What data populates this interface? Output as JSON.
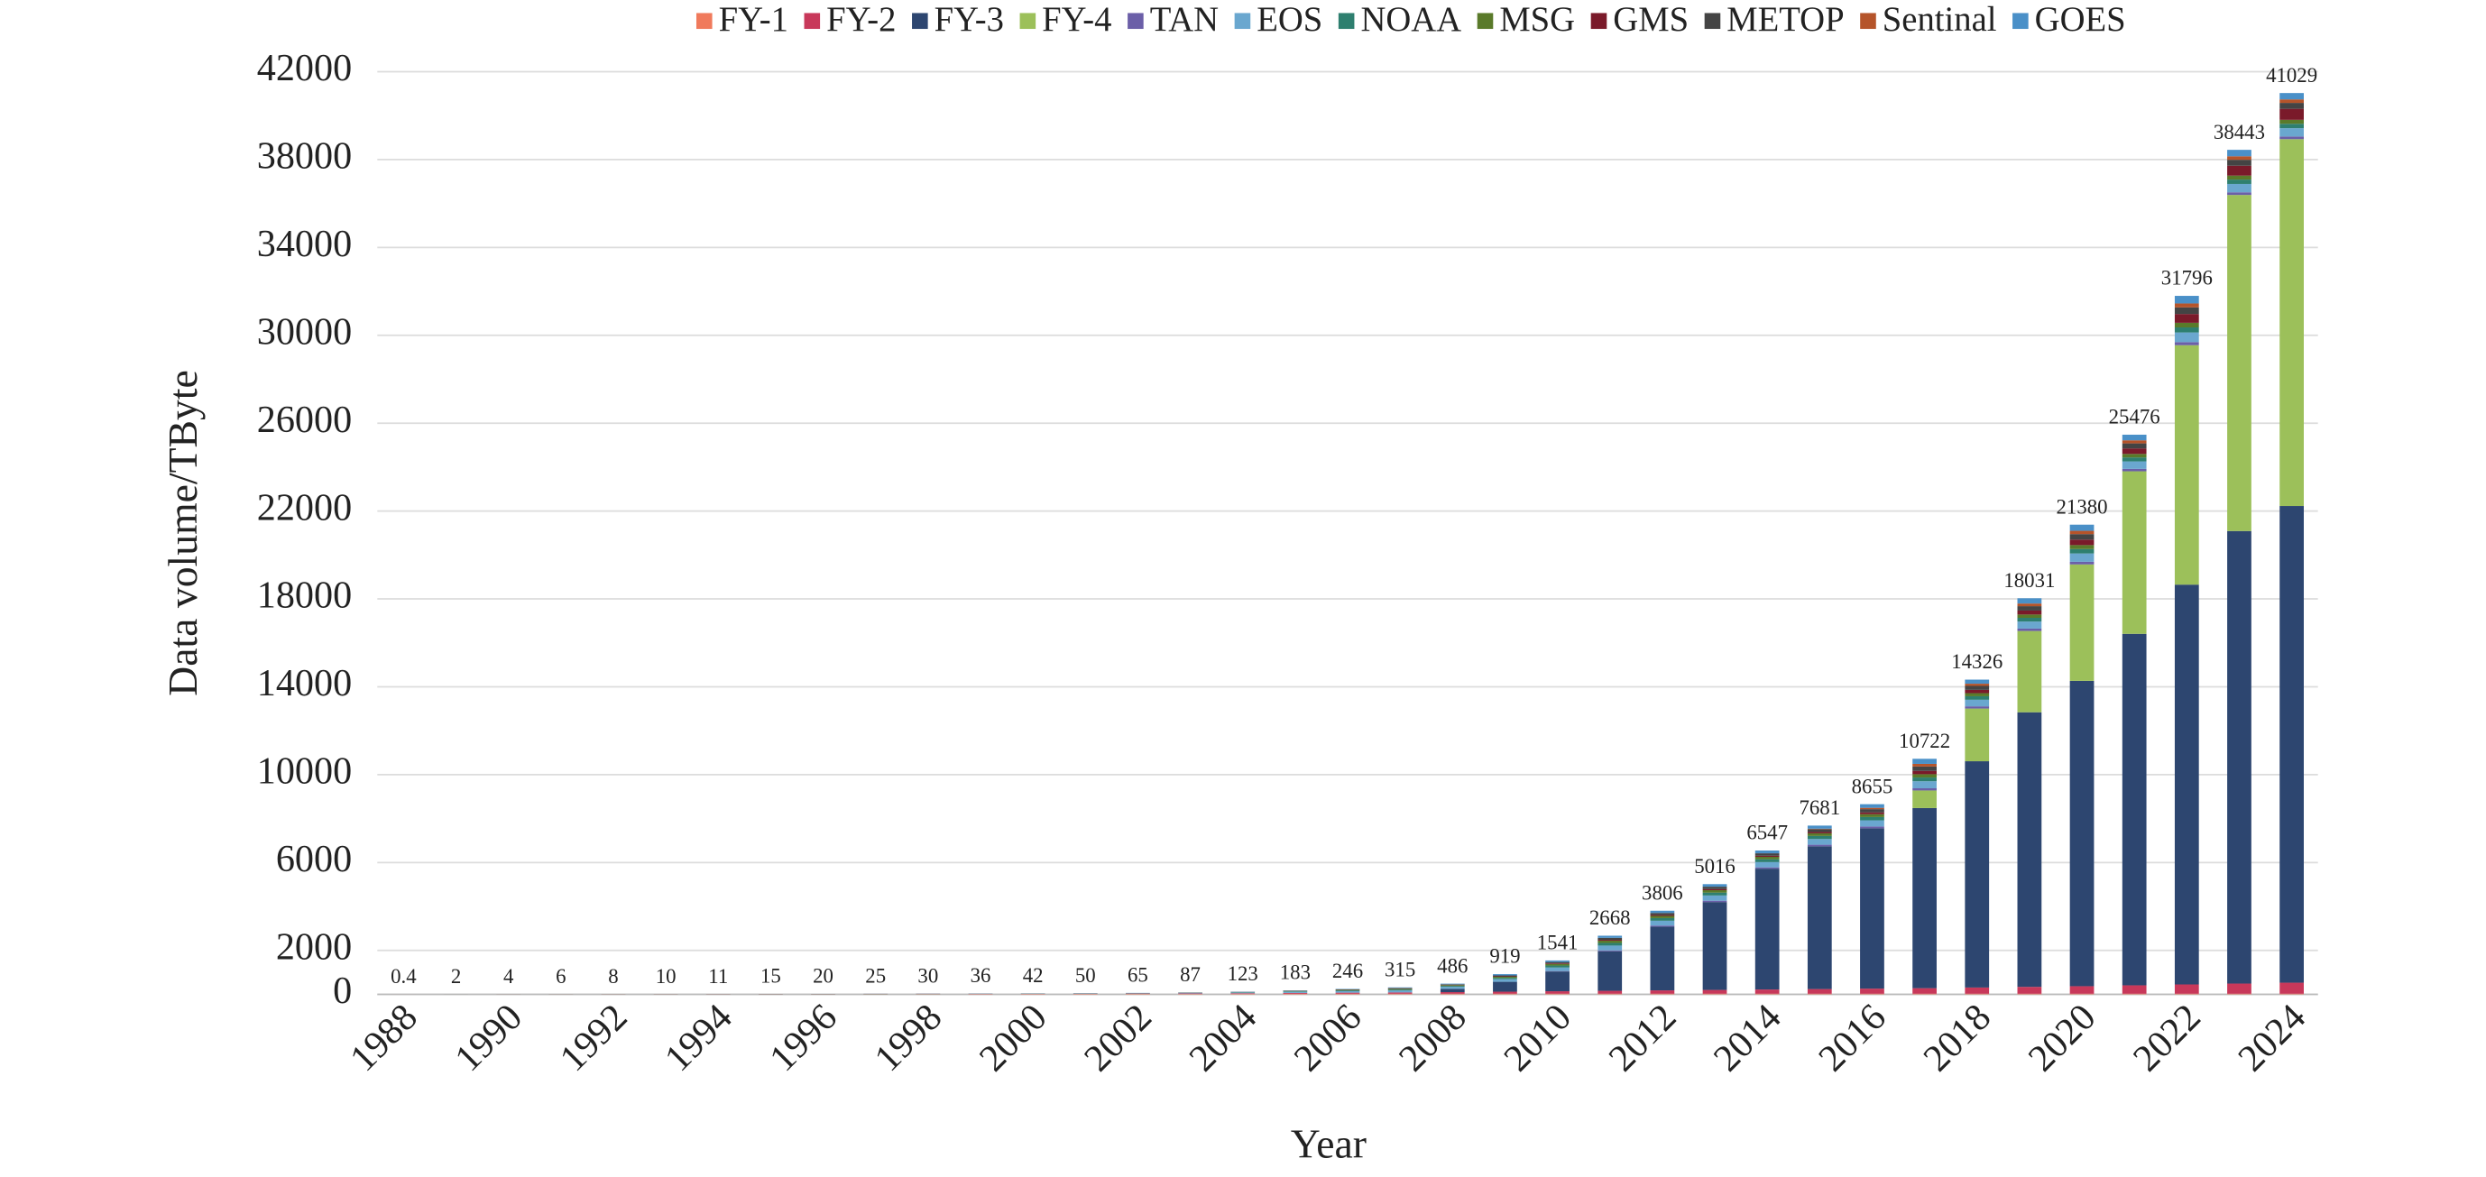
{
  "chart_data": {
    "type": "stacked_bar",
    "y_label": "Data volume/TByte",
    "x_label": "Year",
    "categories": [
      "1988",
      null,
      "1990",
      null,
      "1992",
      null,
      "1994",
      null,
      "1996",
      null,
      "1998",
      null,
      "2000",
      null,
      "2002",
      null,
      "2004",
      null,
      "2006",
      null,
      "2008",
      null,
      "2010",
      null,
      "2012",
      null,
      "2014",
      null,
      "2016",
      null,
      "2018",
      null,
      "2020",
      null,
      "2022",
      null,
      "2024"
    ],
    "totals": [
      0.4,
      2,
      4,
      6,
      8,
      10,
      11,
      15,
      20,
      25,
      30,
      36,
      42,
      50,
      65,
      87,
      123,
      183,
      246,
      315,
      486,
      919,
      1541,
      2668,
      3806,
      5016,
      6547,
      7681,
      8655,
      10722,
      14326,
      18031,
      21380,
      25476,
      31796,
      38443,
      41029
    ],
    "series": [
      {
        "name": "FY-1",
        "color": "#f07a5c",
        "values": [
          0.4,
          1,
          2,
          3,
          4,
          5,
          5,
          6,
          8,
          10,
          12,
          14,
          16,
          18,
          20,
          22,
          25,
          28,
          30,
          30,
          30,
          30,
          30,
          30,
          30,
          30,
          30,
          30,
          30,
          30,
          30,
          30,
          30,
          30,
          30,
          30,
          30
        ]
      },
      {
        "name": "FY-2",
        "color": "#c8385a",
        "values": [
          0,
          0,
          0,
          0,
          0,
          0,
          0,
          0,
          0,
          1,
          2,
          4,
          6,
          8,
          12,
          18,
          25,
          35,
          45,
          55,
          70,
          90,
          110,
          130,
          150,
          170,
          190,
          210,
          230,
          250,
          280,
          310,
          340,
          380,
          420,
          460,
          500
        ]
      },
      {
        "name": "FY-3",
        "color": "#2d4670",
        "values": [
          0,
          0,
          0,
          0,
          0,
          0,
          0,
          0,
          0,
          0,
          0,
          0,
          0,
          0,
          0,
          0,
          0,
          0,
          0,
          0,
          150,
          450,
          900,
          1800,
          2900,
          4000,
          5500,
          6500,
          7300,
          8200,
          10300,
          12500,
          13900,
          16000,
          18200,
          20600,
          21700
        ]
      },
      {
        "name": "FY-4",
        "color": "#9cc05a",
        "values": [
          0,
          0,
          0,
          0,
          0,
          0,
          0,
          0,
          0,
          0,
          0,
          0,
          0,
          0,
          0,
          0,
          0,
          0,
          0,
          0,
          0,
          0,
          0,
          0,
          0,
          0,
          0,
          0,
          0,
          800,
          2400,
          3700,
          5300,
          7400,
          10900,
          15300,
          16700
        ]
      },
      {
        "name": "TAN",
        "color": "#6b5fa8",
        "values": [
          0,
          0,
          0,
          0,
          0,
          0,
          0,
          0,
          0,
          0,
          0,
          0,
          0,
          0,
          0,
          0,
          0,
          0,
          0,
          0,
          0,
          0,
          20,
          40,
          50,
          60,
          60,
          70,
          80,
          100,
          100,
          110,
          120,
          110,
          140,
          120,
          120
        ]
      },
      {
        "name": "EOS",
        "color": "#6aa7cf",
        "values": [
          0,
          0,
          0,
          0,
          0,
          0,
          0,
          0,
          0,
          0,
          0,
          0,
          2,
          5,
          10,
          18,
          30,
          50,
          70,
          90,
          90,
          120,
          160,
          220,
          220,
          240,
          240,
          260,
          280,
          320,
          300,
          320,
          380,
          340,
          440,
          380,
          380
        ]
      },
      {
        "name": "NOAA",
        "color": "#2e7f6f",
        "values": [
          0,
          1,
          1,
          2,
          2,
          3,
          3,
          5,
          6,
          7,
          8,
          8,
          9,
          9,
          10,
          12,
          15,
          25,
          35,
          45,
          45,
          60,
          90,
          120,
          120,
          130,
          130,
          140,
          150,
          170,
          160,
          170,
          200,
          180,
          230,
          200,
          200
        ]
      },
      {
        "name": "MSG",
        "color": "#5a7a2a",
        "values": [
          0,
          0,
          0,
          0,
          0,
          0,
          0,
          0,
          0,
          0,
          0,
          0,
          0,
          0,
          2,
          5,
          10,
          18,
          25,
          35,
          35,
          50,
          70,
          100,
          100,
          110,
          110,
          120,
          130,
          150,
          140,
          150,
          180,
          160,
          210,
          180,
          180
        ]
      },
      {
        "name": "GMS",
        "color": "#7a1a2a",
        "values": [
          0,
          0,
          1,
          1,
          2,
          2,
          3,
          4,
          4,
          4,
          5,
          5,
          4,
          4,
          5,
          5,
          8,
          12,
          15,
          15,
          15,
          20,
          30,
          40,
          45,
          50,
          50,
          60,
          80,
          150,
          150,
          180,
          250,
          250,
          400,
          450,
          500
        ]
      },
      {
        "name": "METOP",
        "color": "#444444",
        "values": [
          0,
          0,
          0,
          0,
          0,
          0,
          0,
          0,
          0,
          0,
          0,
          0,
          0,
          0,
          0,
          0,
          0,
          0,
          6,
          20,
          25,
          40,
          60,
          90,
          90,
          110,
          110,
          130,
          150,
          200,
          180,
          200,
          250,
          230,
          300,
          270,
          270
        ]
      },
      {
        "name": "Sentinal",
        "color": "#b5542a",
        "values": [
          0,
          0,
          0,
          0,
          0,
          0,
          0,
          0,
          0,
          0,
          0,
          0,
          0,
          0,
          0,
          0,
          0,
          0,
          0,
          0,
          0,
          0,
          0,
          0,
          0,
          0,
          0,
          20,
          60,
          120,
          100,
          120,
          150,
          140,
          180,
          160,
          160
        ]
      },
      {
        "name": "GOES",
        "color": "#4a90c8",
        "values": [
          0,
          0,
          0,
          0,
          0,
          0,
          0,
          0,
          2,
          3,
          3,
          5,
          5,
          6,
          6,
          7,
          10,
          15,
          20,
          25,
          26,
          59,
          71,
          98,
          101,
          116,
          127,
          141,
          165,
          232,
          186,
          241,
          280,
          256,
          346,
          293,
          289
        ]
      }
    ],
    "ylim": [
      0,
      42000
    ],
    "yticks": [
      0,
      2000,
      6000,
      10000,
      14000,
      18000,
      22000,
      26000,
      30000,
      34000,
      38000,
      42000
    ],
    "grid": true,
    "legend": "top"
  }
}
